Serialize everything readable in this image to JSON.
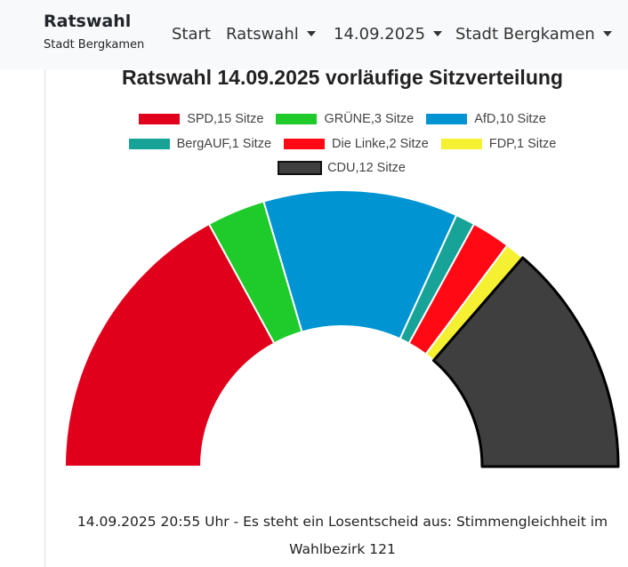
{
  "navbar": {
    "brand_title": "Ratswahl",
    "brand_subtitle": "Stadt Bergkamen",
    "start_label": "Start",
    "ratswahl_label": "Ratswahl",
    "date_label": "14.09.2025",
    "city_label": "Stadt Bergkamen"
  },
  "chart_data": {
    "type": "pie",
    "subtype": "parliament-half-donut",
    "title": "Ratswahl 14.09.2025 vorläufige Sitzverteilung",
    "legend_position": "top",
    "series": [
      {
        "label": "SPD,15 Sitze",
        "party": "SPD",
        "value": 15,
        "color": "#e0001b"
      },
      {
        "label": "GRÜNE,3 Sitze",
        "party": "GRÜNE",
        "value": 3,
        "color": "#1ecb2a"
      },
      {
        "label": "AfD,10 Sitze",
        "party": "AfD",
        "value": 10,
        "color": "#0095d2"
      },
      {
        "label": "BergAUF,1 Sitze",
        "party": "BergAUF",
        "value": 1,
        "color": "#17a398"
      },
      {
        "label": "Die Linke,2 Sitze",
        "party": "Die Linke",
        "value": 2,
        "color": "#ff0a14"
      },
      {
        "label": "FDP,1 Sitze",
        "party": "FDP",
        "value": 1,
        "color": "#f5f032"
      },
      {
        "label": "CDU,12 Sitze",
        "party": "CDU",
        "value": 12,
        "color": "#3f3f3f"
      }
    ]
  },
  "footer": {
    "note": "14.09.2025 20:55 Uhr - Es steht ein Losentscheid aus: Stimmengleichheit im Wahlbezirk 121"
  }
}
